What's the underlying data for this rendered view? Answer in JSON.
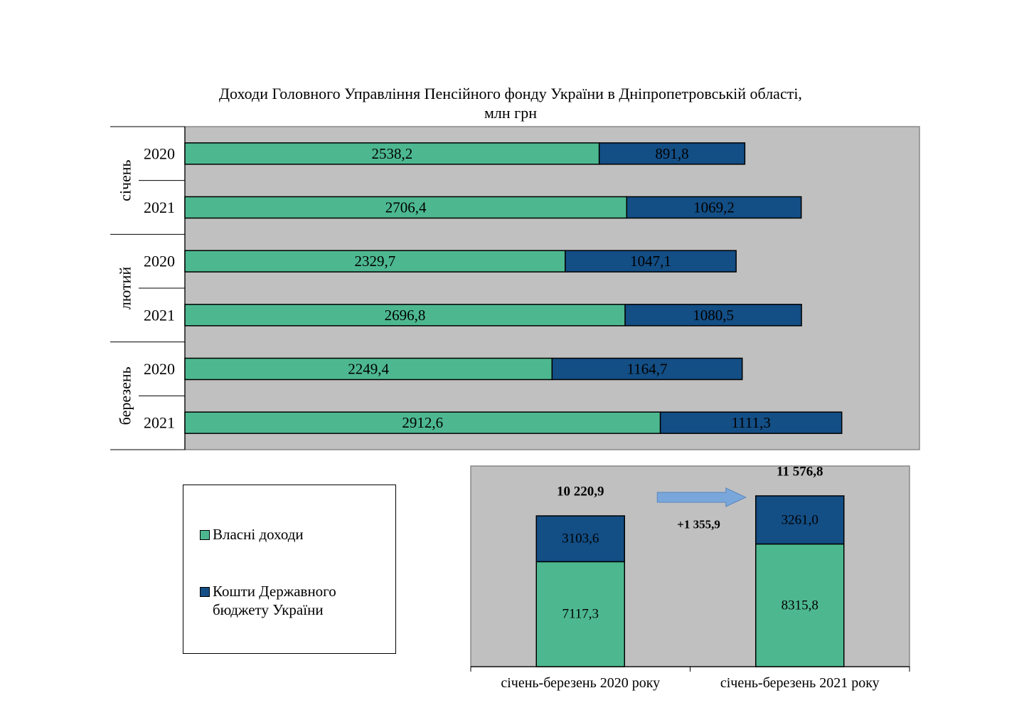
{
  "title": {
    "line1": "Доходи Головного Управління Пенсійного фонду України в Дніпропетровській області,",
    "line2": "млн грн"
  },
  "colors": {
    "own": "#4DB890",
    "state": "#134E85",
    "plot_bg": "#C0C0C0"
  },
  "legend": {
    "items": [
      {
        "label": "Власні доходи",
        "color": "#4DB890"
      },
      {
        "label": "Кошти Державного бюджету України",
        "color": "#134E85"
      }
    ]
  },
  "chart_data": [
    {
      "type": "bar",
      "orientation": "horizontal",
      "stacked": true,
      "groups": [
        "січень",
        "лютий",
        "березень"
      ],
      "categories": [
        "2020",
        "2021",
        "2020",
        "2021",
        "2020",
        "2021"
      ],
      "series": [
        {
          "name": "Власні доходи",
          "values": [
            2538.2,
            2706.4,
            2329.7,
            2696.8,
            2249.4,
            2912.6
          ],
          "labels": [
            "2538,2",
            "2706,4",
            "2329,7",
            "2696,8",
            "2249,4",
            "2912,6"
          ]
        },
        {
          "name": "Кошти Державного бюджету України",
          "values": [
            891.8,
            1069.2,
            1047.1,
            1080.5,
            1164.7,
            1111.3
          ],
          "labels": [
            "891,8",
            "1069,2",
            "1047,1",
            "1080,5",
            "1164,7",
            "1111,3"
          ]
        }
      ],
      "xlim": [
        0,
        4500
      ],
      "grid": false
    },
    {
      "type": "bar",
      "orientation": "vertical",
      "stacked": true,
      "categories": [
        "січень-березень 2020 року",
        "січень-березень 2021 року"
      ],
      "series": [
        {
          "name": "Власні доходи",
          "values": [
            7117.3,
            8315.8
          ],
          "labels": [
            "7117,3",
            "8315,8"
          ]
        },
        {
          "name": "Кошти Державного бюджету України",
          "values": [
            3103.6,
            3261.0
          ],
          "labels": [
            "3103,6",
            "3261,0"
          ]
        }
      ],
      "totals": [
        "10 220,9",
        "11 576,8"
      ],
      "difference": "+1 355,9",
      "ylim": [
        0,
        13600
      ],
      "grid": false
    }
  ]
}
